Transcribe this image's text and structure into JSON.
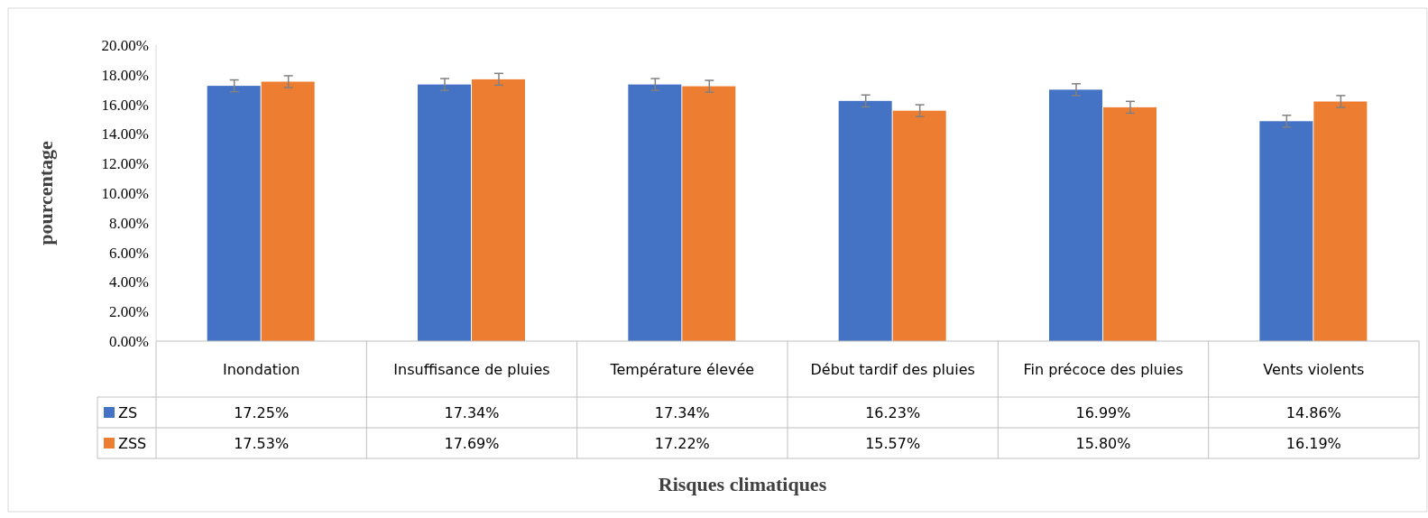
{
  "chart_data": {
    "type": "bar",
    "xlabel": "Risques climatiques",
    "ylabel": "pourcentage",
    "categories": [
      "Inondation",
      "Insuffisance de pluies",
      "Température élevée",
      "Début tardif des pluies",
      "Fin précoce des pluies",
      "Vents violents"
    ],
    "series": [
      {
        "name": "ZS",
        "color": "#4472c4",
        "values": [
          17.25,
          17.34,
          17.34,
          16.23,
          16.99,
          14.86
        ],
        "errors": [
          0.4,
          0.4,
          0.4,
          0.4,
          0.4,
          0.4
        ],
        "value_labels": [
          "17.25%",
          "17.34%",
          "17.34%",
          "16.23%",
          "16.99%",
          "14.86%"
        ]
      },
      {
        "name": "ZSS",
        "color": "#ed7d31",
        "values": [
          17.53,
          17.69,
          17.22,
          15.57,
          15.8,
          16.19
        ],
        "errors": [
          0.4,
          0.4,
          0.4,
          0.4,
          0.4,
          0.4
        ],
        "value_labels": [
          "17.53%",
          "17.69%",
          "17.22%",
          "15.57%",
          "15.80%",
          "16.19%"
        ]
      }
    ],
    "ylim": [
      0,
      20
    ],
    "yticks": [
      {
        "value": 0,
        "label": "0.00%"
      },
      {
        "value": 2,
        "label": "2.00%"
      },
      {
        "value": 4,
        "label": "4.00%"
      },
      {
        "value": 6,
        "label": "6.00%"
      },
      {
        "value": 8,
        "label": "8.00%"
      },
      {
        "value": 10,
        "label": "10.00%"
      },
      {
        "value": 12,
        "label": "12.00%"
      },
      {
        "value": 14,
        "label": "14.00%"
      },
      {
        "value": 16,
        "label": "16.00%"
      },
      {
        "value": 18,
        "label": "18.00%"
      },
      {
        "value": 20,
        "label": "20.00%"
      }
    ],
    "grid": false,
    "legend": "bottom"
  }
}
